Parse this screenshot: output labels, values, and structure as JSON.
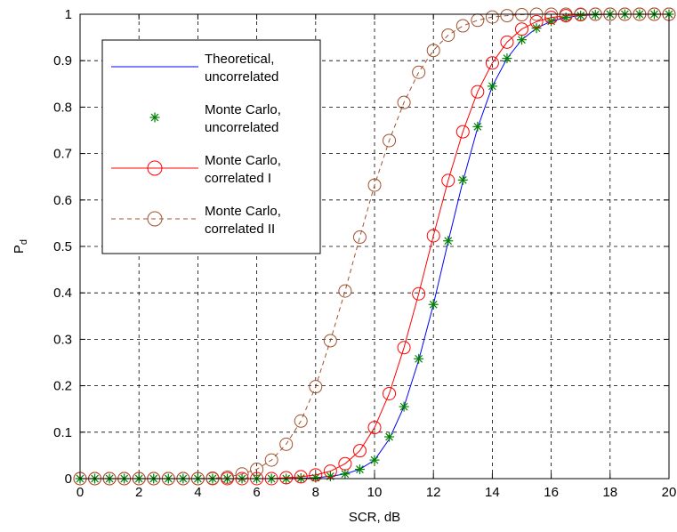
{
  "chart_data": {
    "type": "line",
    "xlabel": "SCR, dB",
    "ylabel": "P",
    "ylabel_sub": "d",
    "xlim": [
      0,
      20
    ],
    "ylim": [
      0,
      1
    ],
    "xticks": [
      0,
      2,
      4,
      6,
      8,
      10,
      12,
      14,
      16,
      18,
      20
    ],
    "yticks": [
      0,
      0.1,
      0.2,
      0.3,
      0.4,
      0.5,
      0.6,
      0.7,
      0.8,
      0.9,
      1
    ],
    "grid": true,
    "legend_position": "upper-left",
    "x": [
      0,
      0.5,
      1,
      1.5,
      2,
      2.5,
      3,
      3.5,
      4,
      4.5,
      5,
      5.5,
      6,
      6.5,
      7,
      7.5,
      8,
      8.5,
      9,
      9.5,
      10,
      10.5,
      11,
      11.5,
      12,
      12.5,
      13,
      13.5,
      14,
      14.5,
      15,
      15.5,
      16,
      16.5,
      17,
      17.5,
      18,
      18.5,
      19,
      19.5,
      20
    ],
    "series": [
      {
        "name": "Theoretical, uncorrelated",
        "name_lines": [
          "Theoretical,",
          "uncorrelated"
        ],
        "style": "line",
        "color": "#0000ff",
        "values": [
          0,
          0,
          0,
          0,
          0,
          0,
          0,
          0,
          0,
          0,
          0,
          0,
          0,
          0,
          0,
          0.001,
          0.002,
          0.005,
          0.01,
          0.02,
          0.04,
          0.085,
          0.155,
          0.255,
          0.375,
          0.51,
          0.64,
          0.755,
          0.845,
          0.905,
          0.945,
          0.97,
          0.985,
          0.993,
          0.997,
          0.999,
          1,
          1,
          1,
          1,
          1
        ]
      },
      {
        "name": "Monte Carlo, uncorrelated",
        "name_lines": [
          "Monte Carlo,",
          "uncorrelated"
        ],
        "style": "star",
        "color": "#008000",
        "values": [
          0,
          0,
          0,
          0,
          0,
          0,
          0,
          0,
          0,
          0,
          0,
          0,
          0,
          0,
          0,
          0.001,
          0.002,
          0.005,
          0.01,
          0.02,
          0.04,
          0.09,
          0.155,
          0.258,
          0.375,
          0.512,
          0.643,
          0.758,
          0.845,
          0.905,
          0.945,
          0.97,
          0.985,
          0.993,
          0.997,
          0.999,
          1,
          1,
          1,
          1,
          1
        ]
      },
      {
        "name": "Monte Carlo, correlated I",
        "name_lines": [
          "Monte Carlo,",
          "correlated I"
        ],
        "style": "line-circle",
        "color": "#ff0000",
        "values": [
          0,
          0,
          0,
          0,
          0,
          0,
          0,
          0,
          0,
          0,
          0,
          0,
          0,
          0,
          0.002,
          0.004,
          0.008,
          0.016,
          0.032,
          0.06,
          0.11,
          0.183,
          0.282,
          0.398,
          0.523,
          0.642,
          0.747,
          0.833,
          0.895,
          0.94,
          0.968,
          0.984,
          0.993,
          0.997,
          0.999,
          1,
          1,
          1,
          1,
          1,
          1
        ]
      },
      {
        "name": "Monte Carlo, correlated II",
        "name_lines": [
          "Monte Carlo,",
          "correlated II"
        ],
        "style": "dash-circle",
        "color": "#a0522d",
        "values": [
          0,
          0,
          0,
          0,
          0,
          0,
          0,
          0,
          0,
          0.001,
          0.003,
          0.01,
          0.02,
          0.04,
          0.074,
          0.124,
          0.198,
          0.297,
          0.404,
          0.52,
          0.632,
          0.728,
          0.81,
          0.875,
          0.922,
          0.955,
          0.975,
          0.987,
          0.994,
          0.997,
          0.999,
          1,
          1,
          1,
          1,
          1,
          1,
          1,
          1,
          1,
          1
        ]
      }
    ]
  }
}
